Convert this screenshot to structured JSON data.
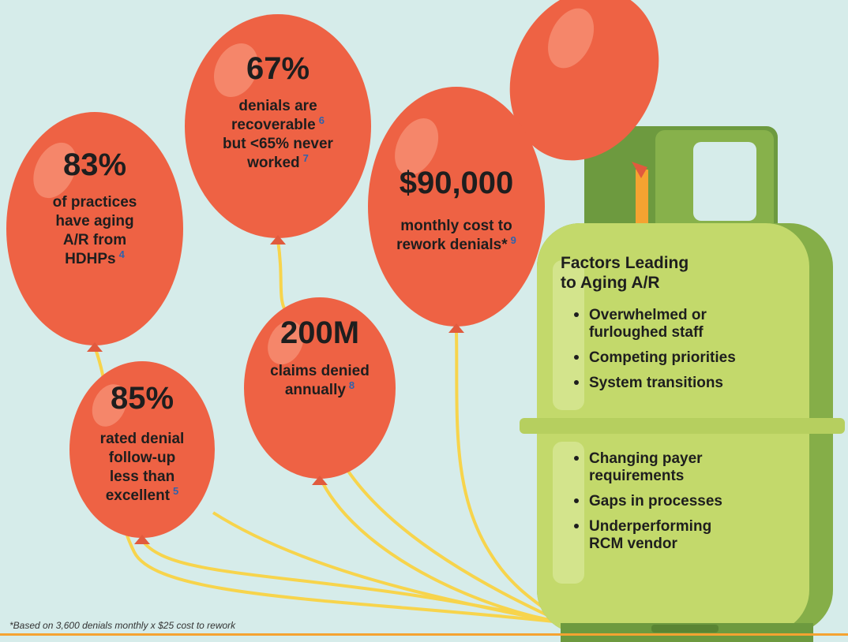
{
  "balloons": [
    {
      "stat": "83%",
      "lines": [
        {
          "text": "of practices"
        },
        {
          "text": "have aging"
        },
        {
          "text": "A/R from"
        },
        {
          "text": "HDHPs",
          "note": "4"
        }
      ]
    },
    {
      "stat": "67%",
      "lines": [
        {
          "text": "denials are"
        },
        {
          "text": "recoverable",
          "note": "6"
        },
        {
          "text": "but <65% never"
        },
        {
          "text": "worked",
          "note": "7"
        }
      ]
    },
    {
      "stat": "$90,000",
      "lines": [
        {
          "text": "monthly cost to"
        },
        {
          "text": "rework denials*",
          "note": "9"
        }
      ]
    },
    {
      "stat": "200M",
      "lines": [
        {
          "text": "claims denied"
        },
        {
          "text": "annually",
          "note": "8"
        }
      ]
    },
    {
      "stat": "85%",
      "lines": [
        {
          "text": "rated denial"
        },
        {
          "text": "follow-up"
        },
        {
          "text": "less than"
        },
        {
          "text": "excellent",
          "note": "5"
        }
      ]
    }
  ],
  "tank": {
    "title": [
      "Factors Leading",
      "to Aging A/R"
    ],
    "upper": [
      [
        "Overwhelmed or",
        "furloughed staff"
      ],
      [
        "Competing priorities"
      ],
      [
        "System transitions"
      ]
    ],
    "lower": [
      [
        "Changing payer",
        "requirements"
      ],
      [
        "Gaps in processes"
      ],
      [
        "Underperforming",
        "RCM vendor"
      ]
    ]
  },
  "footnote": "*Based on 3,600 denials monthly x $25 cost to rework"
}
